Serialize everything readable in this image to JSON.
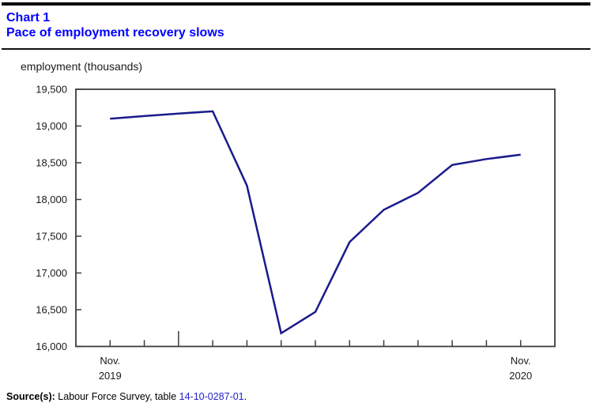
{
  "header": {
    "chart_label": "Chart 1",
    "title": "Pace of employment recovery slows"
  },
  "axis_title": "employment (thousands)",
  "source": {
    "label": "Source(s):",
    "text": " Labour Force Survey, table ",
    "link": "14-10-0287-01",
    "suffix": "."
  },
  "colors": {
    "title_blue": "#0000ff",
    "line_navy": "#1a1a8c",
    "link_blue": "#2222cc",
    "axis_gray": "#3c3c3c",
    "label_text": "#1a1a1a"
  },
  "chart_data": {
    "type": "line",
    "title": "Pace of employment recovery slows",
    "ylabel": "employment (thousands)",
    "xlabel": "",
    "x": [
      "Nov. 2019",
      "Dec. 2019",
      "Jan. 2020",
      "Feb. 2020",
      "Mar. 2020",
      "Apr. 2020",
      "May 2020",
      "Jun. 2020",
      "Jul. 2020",
      "Aug. 2020",
      "Sep. 2020",
      "Oct. 2020",
      "Nov. 2020"
    ],
    "series": [
      {
        "name": "employment (thousands)",
        "values": [
          19100,
          19135,
          19170,
          19200,
          18190,
          16180,
          16470,
          17420,
          17860,
          18090,
          18470,
          18550,
          18610
        ]
      }
    ],
    "ylim": [
      16000,
      19500
    ],
    "y_tick_step": 500,
    "y_tick_labels": [
      "16,000",
      "16,500",
      "17,000",
      "17,500",
      "18,000",
      "18,500",
      "19,000",
      "19,500"
    ],
    "x_axis_labels": [
      {
        "index": 0,
        "line1": "Nov.",
        "line2": "2019"
      },
      {
        "index": 12,
        "line1": "Nov.",
        "line2": "2020"
      }
    ],
    "year_divider_tick_index": 2,
    "grid": false,
    "legend": "none"
  }
}
